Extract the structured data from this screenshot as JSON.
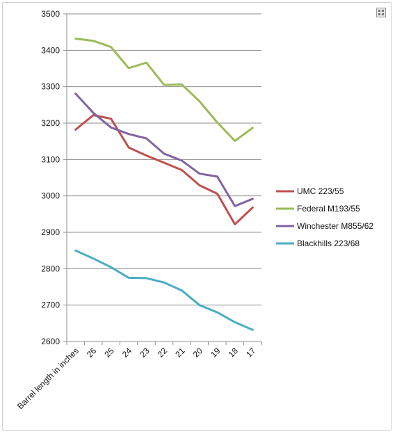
{
  "chart_data": {
    "type": "line",
    "categories": [
      "Barrel length in inches",
      "26",
      "25",
      "24",
      "23",
      "22",
      "21",
      "20",
      "19",
      "18",
      "17"
    ],
    "ylim": [
      2600,
      3500
    ],
    "yticks": [
      2600,
      2700,
      2800,
      2900,
      3000,
      3100,
      3200,
      3300,
      3400,
      3500
    ],
    "grid": true,
    "legend_position": "right",
    "series": [
      {
        "name": "UMC 223/55",
        "color": "#c0504d",
        "values": [
          3182,
          3222,
          3212,
          3133,
          3111,
          3091,
          3071,
          3029,
          3006,
          2922,
          2968
        ]
      },
      {
        "name": "Federal M193/55",
        "color": "#9bbb59",
        "values": [
          3432,
          3426,
          3409,
          3351,
          3366,
          3305,
          3306,
          3260,
          3202,
          3151,
          3187
        ]
      },
      {
        "name": "Winchester M855/62",
        "color": "#8064a2",
        "values": [
          3281,
          3228,
          3188,
          3170,
          3158,
          3116,
          3097,
          3061,
          3053,
          2972,
          2992
        ]
      },
      {
        "name": "Blackhills 223/68",
        "color": "#4bacc6",
        "values": [
          2850,
          2828,
          2804,
          2775,
          2774,
          2762,
          2740,
          2700,
          2680,
          2653,
          2632
        ]
      }
    ]
  },
  "icons": {
    "corner": "expand-chart-icon"
  }
}
